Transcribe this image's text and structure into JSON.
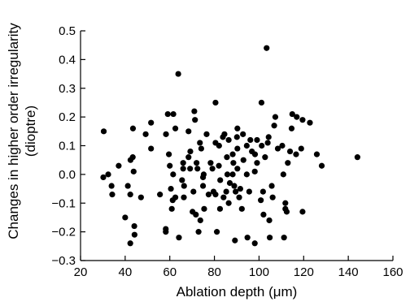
{
  "chart_data": {
    "type": "scatter",
    "xlabel": "Ablation depth (μm)",
    "ylabel_lines": [
      "Changes in higher order irregularity",
      "(dioptre)"
    ],
    "xlim": [
      20,
      160
    ],
    "ylim": [
      -0.3,
      0.5
    ],
    "x_ticks": [
      20,
      40,
      60,
      80,
      100,
      120,
      140,
      160
    ],
    "y_ticks": [
      -0.3,
      -0.2,
      -0.1,
      0.0,
      0.1,
      0.2,
      0.3,
      0.4,
      0.5
    ],
    "y_tick_labels": [
      "−0.3",
      "−0.2",
      "−0.1",
      "0.0",
      "0.1",
      "0.2",
      "0.3",
      "0.4",
      "0.5"
    ],
    "points": [
      [
        30.4,
        0.15
      ],
      [
        30.2,
        -0.01
      ],
      [
        32.4,
        0.0
      ],
      [
        33.9,
        -0.04
      ],
      [
        34.2,
        -0.07
      ],
      [
        37.1,
        0.03
      ],
      [
        40.0,
        -0.15
      ],
      [
        41.2,
        -0.04
      ],
      [
        42.3,
        -0.07
      ],
      [
        42.3,
        -0.24
      ],
      [
        42.4,
        0.05
      ],
      [
        43.5,
        0.16
      ],
      [
        43.4,
        0.06
      ],
      [
        43.8,
        0.01
      ],
      [
        44.1,
        -0.18
      ],
      [
        44.2,
        -0.21
      ],
      [
        47.1,
        -0.08
      ],
      [
        49.2,
        0.14
      ],
      [
        51.6,
        0.18
      ],
      [
        51.6,
        0.09
      ],
      [
        55.6,
        -0.07
      ],
      [
        58.2,
        -0.19
      ],
      [
        58.2,
        -0.2
      ],
      [
        58.3,
        0.14
      ],
      [
        59.1,
        0.21
      ],
      [
        59.6,
        0.07
      ],
      [
        60.0,
        0.03
      ],
      [
        60.5,
        -0.05
      ],
      [
        60.9,
        -0.12
      ],
      [
        61.5,
        0.0
      ],
      [
        61.3,
        -0.09
      ],
      [
        62.5,
        -0.08
      ],
      [
        62.5,
        0.16
      ],
      [
        61.6,
        0.21
      ],
      [
        63.8,
        0.35
      ],
      [
        64.1,
        -0.22
      ],
      [
        65.5,
        -0.02
      ],
      [
        66.0,
        0.02
      ],
      [
        66.0,
        0.04
      ],
      [
        66.3,
        -0.08
      ],
      [
        66.4,
        -0.04
      ],
      [
        68.4,
        0.15
      ],
      [
        68.4,
        0.06
      ],
      [
        69.2,
        0.08
      ],
      [
        69.1,
        0.02
      ],
      [
        70.2,
        -0.13
      ],
      [
        71.7,
        -0.14
      ],
      [
        70.6,
        -0.06
      ],
      [
        71.0,
        0.22
      ],
      [
        71.3,
        0.19
      ],
      [
        72.0,
        0.04
      ],
      [
        72.4,
        0.02
      ],
      [
        72.9,
        -0.2
      ],
      [
        73.5,
        0.11
      ],
      [
        74.1,
        0.09
      ],
      [
        73.7,
        -0.16
      ],
      [
        74.9,
        -0.04
      ],
      [
        74.9,
        -0.01
      ],
      [
        75.2,
        0.0
      ],
      [
        75.4,
        -0.12
      ],
      [
        76.5,
        0.14
      ],
      [
        77.4,
        -0.07
      ],
      [
        78.3,
        0.04
      ],
      [
        79.1,
        0.02
      ],
      [
        79.6,
        -0.06
      ],
      [
        80.5,
        0.25
      ],
      [
        80.5,
        0.11
      ],
      [
        80.5,
        -0.07
      ],
      [
        81.1,
        -0.2
      ],
      [
        82.1,
        0.1
      ],
      [
        82.0,
        0.03
      ],
      [
        82.6,
        -0.02
      ],
      [
        82.5,
        -0.12
      ],
      [
        83.8,
        0.13
      ],
      [
        84.1,
        -0.08
      ],
      [
        84.5,
        0.14
      ],
      [
        85.6,
        0.06
      ],
      [
        85.3,
        -0.06
      ],
      [
        85.8,
        0.0
      ],
      [
        86.4,
        -0.1
      ],
      [
        86.4,
        0.12
      ],
      [
        86.9,
        -0.03
      ],
      [
        88.5,
        0.04
      ],
      [
        88.2,
        0.07
      ],
      [
        88.2,
        0.0
      ],
      [
        88.9,
        -0.04
      ],
      [
        89.2,
        -0.23
      ],
      [
        89.5,
        -0.06
      ],
      [
        90.3,
        0.16
      ],
      [
        90.1,
        0.13
      ],
      [
        90.3,
        0.09
      ],
      [
        90.3,
        0.02
      ],
      [
        91.1,
        -0.08
      ],
      [
        91.6,
        -0.05
      ],
      [
        92.3,
        -0.12
      ],
      [
        92.8,
        0.14
      ],
      [
        93.0,
        0.05
      ],
      [
        94.5,
        0.1
      ],
      [
        94.5,
        0.0
      ],
      [
        94.8,
        -0.22
      ],
      [
        95.6,
        -0.06
      ],
      [
        96.1,
        0.12
      ],
      [
        96.8,
        0.08
      ],
      [
        98.1,
        -0.24
      ],
      [
        98.1,
        0.01
      ],
      [
        98.2,
        0.07
      ],
      [
        99.1,
        0.12
      ],
      [
        99.1,
        0.04
      ],
      [
        100.8,
        -0.09
      ],
      [
        101.2,
        0.1
      ],
      [
        101.1,
        0.25
      ],
      [
        101.8,
        -0.06
      ],
      [
        102.0,
        -0.14
      ],
      [
        102.7,
        0.06
      ],
      [
        103.4,
        0.44
      ],
      [
        103.9,
        0.11
      ],
      [
        104.3,
        0.13
      ],
      [
        104.6,
        -0.16
      ],
      [
        104.8,
        -0.22
      ],
      [
        105.7,
        -0.04
      ],
      [
        106.1,
        -0.08
      ],
      [
        106.8,
        0.17
      ],
      [
        107.3,
        0.2
      ],
      [
        108.4,
        0.09
      ],
      [
        110.4,
        0.1
      ],
      [
        110.9,
        0.0
      ],
      [
        111.2,
        -0.22
      ],
      [
        111.8,
        -0.1
      ],
      [
        111.8,
        -0.12
      ],
      [
        112.4,
        -0.13
      ],
      [
        112.9,
        0.04
      ],
      [
        113.9,
        0.08
      ],
      [
        114.6,
        0.16
      ],
      [
        114.9,
        0.21
      ],
      [
        116.6,
        0.07
      ],
      [
        116.9,
        0.2
      ],
      [
        118.9,
        0.09
      ],
      [
        119.5,
        -0.13
      ],
      [
        119.5,
        0.19
      ],
      [
        122.8,
        0.18
      ],
      [
        125.9,
        0.07
      ],
      [
        128.1,
        0.03
      ],
      [
        144.1,
        0.06
      ]
    ]
  }
}
